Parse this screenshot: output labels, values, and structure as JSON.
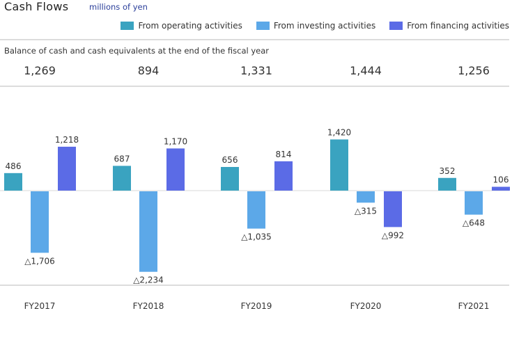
{
  "header": {
    "title": "Cash Flows",
    "unit": "millions of yen"
  },
  "balance": {
    "label": "Balance of cash and cash equivalents at the end of the fiscal year",
    "values": [
      "1,269",
      "894",
      "1,331",
      "1,444",
      "1,256"
    ]
  },
  "colors": {
    "operating": "#3aa3c0",
    "investing": "#5ca8e8",
    "financing": "#5b6be6"
  },
  "chart_data": {
    "type": "bar",
    "title": "Cash Flows",
    "subtitle": "millions of yen",
    "xlabel": "",
    "ylabel": "",
    "negative_prefix": "△",
    "categories": [
      "FY2017",
      "FY2018",
      "FY2019",
      "FY2020",
      "FY2021"
    ],
    "legend_position": "top-right",
    "grid": false,
    "ylim": [
      -2234,
      1420
    ],
    "series": [
      {
        "name": "From operating activities",
        "key": "operating",
        "values": [
          486,
          687,
          656,
          1420,
          352
        ]
      },
      {
        "name": "From investing activities",
        "key": "investing",
        "values": [
          -1706,
          -2234,
          -1035,
          -315,
          -648
        ]
      },
      {
        "name": "From financing activities",
        "key": "financing",
        "values": [
          1218,
          1170,
          814,
          -992,
          106
        ]
      }
    ]
  }
}
